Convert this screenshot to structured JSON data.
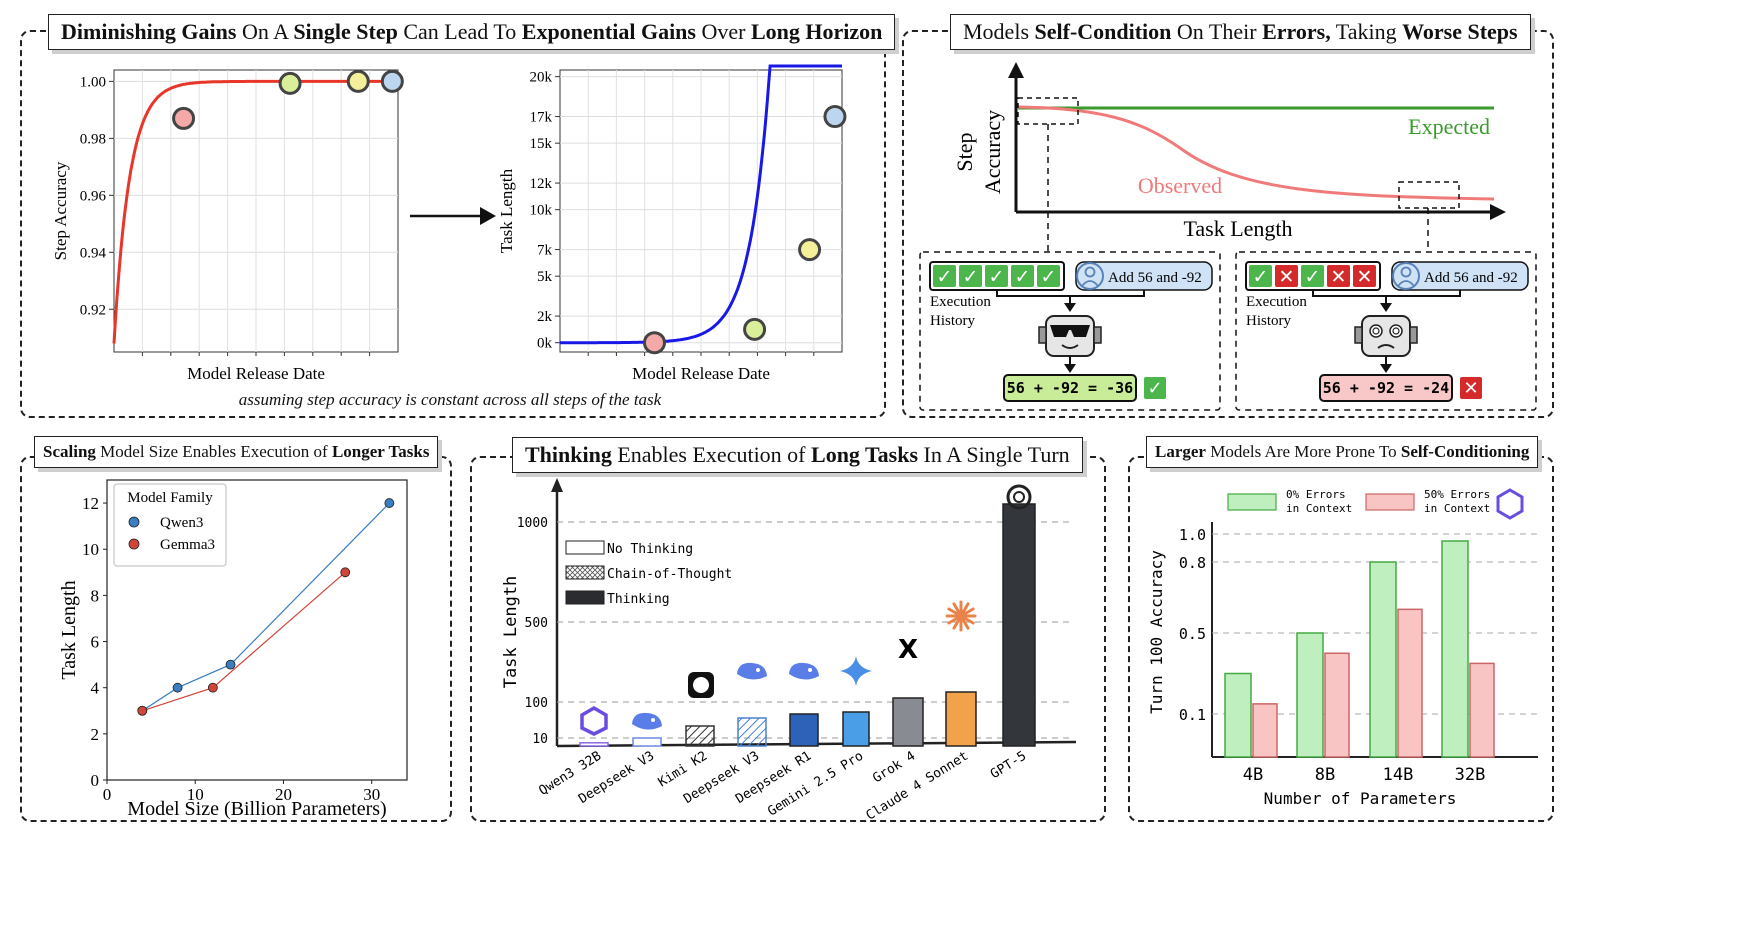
{
  "colors": {
    "red_line": "#e8372a",
    "blue_line": "#1919e6",
    "expected_green": "#3a9a2c",
    "observed_red": "#f07a7a",
    "green_bar": "#bfeebf",
    "pink_bar": "#f8c4c4",
    "qwen_blue": "#3a7dc0",
    "gemma_red": "#d0453a"
  },
  "panel1": {
    "title_parts": [
      {
        "text": "Diminishing Gains",
        "bold": true
      },
      {
        "text": " On A ",
        "bold": false
      },
      {
        "text": "Single Step",
        "bold": true
      },
      {
        "text": " Can Lead To ",
        "bold": false
      },
      {
        "text": "Exponential Gains",
        "bold": true
      },
      {
        "text": " Over ",
        "bold": false
      },
      {
        "text": "Long Horizon",
        "bold": true
      }
    ],
    "caption": "assuming step accuracy is constant across all steps of the task"
  },
  "panel2": {
    "title_parts": [
      {
        "text": "Models ",
        "bold": false
      },
      {
        "text": "Self-Condition",
        "bold": true
      },
      {
        "text": " On Their ",
        "bold": false
      },
      {
        "text": "Errors,",
        "bold": true
      },
      {
        "text": " Taking ",
        "bold": false
      },
      {
        "text": "Worse Steps",
        "bold": true
      }
    ],
    "ylabel_line1": "Step",
    "ylabel_line2": "Accuracy",
    "xlabel": "Task Length",
    "expected_label": "Expected",
    "observed_label": "Observed",
    "history_label_1": "Execution",
    "history_label_2": "History",
    "prompt": "Add 56 and -92",
    "left_answer": "56 + -92 = -36",
    "right_answer": "56 + -92 = -24",
    "left_history": [
      "correct",
      "correct",
      "correct",
      "correct",
      "correct"
    ],
    "right_history": [
      "correct",
      "wrong",
      "correct",
      "wrong",
      "wrong"
    ]
  },
  "panel3": {
    "title_parts": [
      {
        "text": "Scaling",
        "bold": true
      },
      {
        "text": " Model Size Enables Execution of ",
        "bold": false
      },
      {
        "text": "Longer Tasks",
        "bold": true
      }
    ]
  },
  "panel4": {
    "title_parts": [
      {
        "text": "Thinking",
        "bold": true
      },
      {
        "text": " Enables Execution of ",
        "bold": false
      },
      {
        "text": "Long Tasks",
        "bold": true
      },
      {
        "text": " In A Single Turn",
        "bold": false
      }
    ]
  },
  "panel5": {
    "title_parts": [
      {
        "text": "Larger",
        "bold": true
      },
      {
        "text": " Models Are More Prone To ",
        "bold": false
      },
      {
        "text": "Self-Conditioning",
        "bold": true
      }
    ]
  },
  "chart_data": [
    {
      "id": "step-accuracy",
      "type": "line",
      "title": "",
      "xlabel": "Model Release Date",
      "ylabel": "Step Accuracy",
      "ylim": [
        0.905,
        1.004
      ],
      "yticks": [
        0.92,
        0.94,
        0.96,
        0.98,
        1.0
      ],
      "ytick_labels": [
        "0.92",
        "0.94",
        "0.96",
        "0.98",
        "1.00"
      ],
      "curve": "1 - 0.092*exp(-x/0.055)",
      "xlim": [
        0,
        1
      ],
      "points": [
        {
          "x": 0.245,
          "y": 0.987,
          "color": "#f4a8a8"
        },
        {
          "x": 0.62,
          "y": 0.9993,
          "color": "#d9ef9a"
        },
        {
          "x": 0.86,
          "y": 1.0,
          "color": "#f4ef9a"
        },
        {
          "x": 0.98,
          "y": 1.0,
          "color": "#bcd6ef"
        }
      ]
    },
    {
      "id": "task-length",
      "type": "line",
      "title": "",
      "xlabel": "Model Release Date",
      "ylabel": "Task Length",
      "ylim": [
        -700,
        20500
      ],
      "yticks": [
        0,
        2000,
        5000,
        7000,
        10000,
        12000,
        15000,
        17000,
        20000
      ],
      "ytick_labels": [
        "0k",
        "2k",
        "5k",
        "7k",
        "10k",
        "12k",
        "15k",
        "17k",
        "20k"
      ],
      "curve": "500*exp(x/0.07)",
      "xlim": [
        0,
        1
      ],
      "points": [
        {
          "x": 0.335,
          "y": 0,
          "color": "#f4a8a8"
        },
        {
          "x": 0.69,
          "y": 1000,
          "color": "#d9ef9a"
        },
        {
          "x": 0.885,
          "y": 7000,
          "color": "#f4ef9a"
        },
        {
          "x": 0.975,
          "y": 17000,
          "color": "#bcd6ef"
        }
      ]
    },
    {
      "id": "model-size",
      "type": "line",
      "xlabel": "Model Size (Billion Parameters)",
      "ylabel": "Task Length",
      "xlim": [
        0,
        34
      ],
      "ylim": [
        0,
        13
      ],
      "xticks": [
        0,
        10,
        20,
        30
      ],
      "yticks": [
        0,
        2,
        4,
        6,
        8,
        10,
        12
      ],
      "legend_title": "Model Family",
      "series": [
        {
          "name": "Qwen3",
          "color": "#3a7dc0",
          "x": [
            4,
            8,
            14,
            32
          ],
          "y": [
            3,
            4,
            5,
            12
          ]
        },
        {
          "name": "Gemma3",
          "color": "#d0453a",
          "x": [
            4,
            12,
            27
          ],
          "y": [
            3,
            4,
            9
          ]
        }
      ]
    },
    {
      "id": "thinking",
      "type": "bar",
      "ylabel": "Task Length",
      "yticks": [
        10,
        100,
        500,
        1000
      ],
      "ytick_labels": [
        "10",
        "100",
        "500",
        "1000"
      ],
      "legend": [
        "No Thinking",
        "Chain-of-Thought",
        "Thinking"
      ],
      "categories": [
        "Qwen3 32B",
        "Deepseek V3",
        "Kimi K2",
        "Deepseek V3",
        "Deepseek R1",
        "Gemini 2.5 Pro",
        "Grok 4",
        "Claude 4 Sonnet",
        "GPT-5"
      ],
      "values": [
        4,
        10,
        40,
        60,
        70,
        75,
        120,
        150,
        1090
      ],
      "styles": [
        "outline",
        "outline",
        "hatched",
        "hatched",
        "solid",
        "solid",
        "solid",
        "solid",
        "solid"
      ],
      "bar_colors": [
        "#8a6ae0",
        "#6a8ae0",
        "#333333",
        "#4a82d0",
        "#2d62b8",
        "#4a9ee8",
        "#888c92",
        "#f2a24a",
        "#33363a"
      ]
    },
    {
      "id": "self-conditioning",
      "type": "bar",
      "xlabel": "Number of Parameters",
      "ylabel": "Turn 100 Accuracy",
      "yticks": [
        0.1,
        0.5,
        0.8,
        1.0
      ],
      "ytick_labels": [
        "0.1",
        "0.5",
        "0.8",
        "1.0"
      ],
      "categories": [
        "4B",
        "8B",
        "14B",
        "32B"
      ],
      "series": [
        {
          "name": "0% Errors in Context",
          "values": [
            0.3,
            0.5,
            0.8,
            0.95
          ]
        },
        {
          "name": "50% Errors in Context",
          "values": [
            0.15,
            0.4,
            0.6,
            0.35
          ]
        }
      ]
    }
  ]
}
